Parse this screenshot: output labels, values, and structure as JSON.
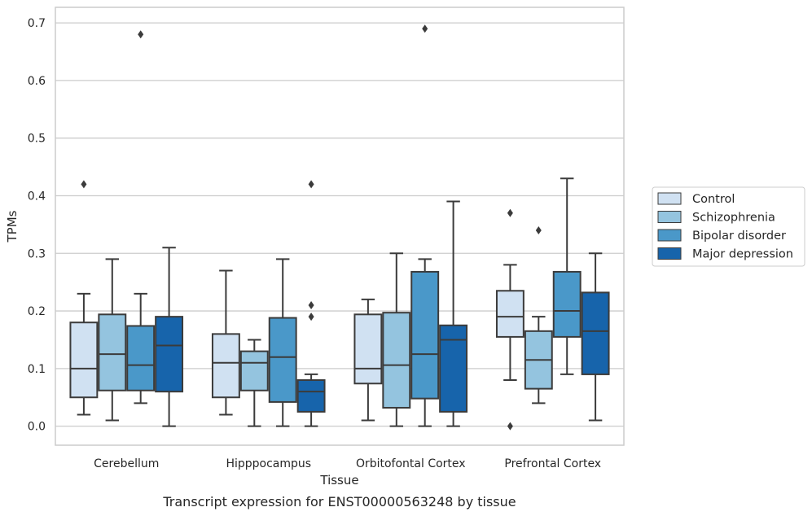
{
  "caption": "Transcript expression for ENST00000563248 by tissue",
  "chart_data": {
    "type": "boxplot",
    "xlabel": "Tissue",
    "ylabel": "TPMs",
    "ylim": [
      -0.033,
      0.727
    ],
    "yticks": [
      0.0,
      0.1,
      0.2,
      0.3,
      0.4,
      0.5,
      0.6,
      0.7
    ],
    "ytick_labels": [
      "0.0",
      "0.1",
      "0.2",
      "0.3",
      "0.4",
      "0.5",
      "0.6",
      "0.7"
    ],
    "grid": true,
    "legend_position": "right",
    "categories": [
      "Cerebellum",
      "Hipppocampus",
      "Orbitofontal Cortex",
      "Prefrontal Cortex"
    ],
    "series": [
      {
        "name": "Control",
        "color": "#d0e1f2",
        "boxes": [
          {
            "whislo": 0.02,
            "q1": 0.05,
            "med": 0.1,
            "q3": 0.18,
            "whishi": 0.23,
            "fliers": [
              0.42
            ]
          },
          {
            "whislo": 0.02,
            "q1": 0.05,
            "med": 0.11,
            "q3": 0.16,
            "whishi": 0.27,
            "fliers": []
          },
          {
            "whislo": 0.01,
            "q1": 0.074,
            "med": 0.1,
            "q3": 0.194,
            "whishi": 0.22,
            "fliers": []
          },
          {
            "whislo": 0.08,
            "q1": 0.155,
            "med": 0.19,
            "q3": 0.235,
            "whishi": 0.28,
            "fliers": [
              0.37,
              0.0
            ]
          }
        ]
      },
      {
        "name": "Schizophrenia",
        "color": "#94c4df",
        "boxes": [
          {
            "whislo": 0.01,
            "q1": 0.062,
            "med": 0.125,
            "q3": 0.194,
            "whishi": 0.29,
            "fliers": []
          },
          {
            "whislo": 0.0,
            "q1": 0.062,
            "med": 0.11,
            "q3": 0.13,
            "whishi": 0.15,
            "fliers": []
          },
          {
            "whislo": 0.0,
            "q1": 0.032,
            "med": 0.106,
            "q3": 0.197,
            "whishi": 0.3,
            "fliers": []
          },
          {
            "whislo": 0.04,
            "q1": 0.065,
            "med": 0.115,
            "q3": 0.165,
            "whishi": 0.19,
            "fliers": [
              0.34
            ]
          }
        ]
      },
      {
        "name": "Bipolar disorder",
        "color": "#4a98c9",
        "boxes": [
          {
            "whislo": 0.04,
            "q1": 0.062,
            "med": 0.106,
            "q3": 0.174,
            "whishi": 0.23,
            "fliers": [
              0.68
            ]
          },
          {
            "whislo": 0.0,
            "q1": 0.042,
            "med": 0.12,
            "q3": 0.188,
            "whishi": 0.29,
            "fliers": []
          },
          {
            "whislo": 0.0,
            "q1": 0.048,
            "med": 0.125,
            "q3": 0.268,
            "whishi": 0.29,
            "fliers": [
              0.69
            ]
          },
          {
            "whislo": 0.09,
            "q1": 0.155,
            "med": 0.2,
            "q3": 0.268,
            "whishi": 0.43,
            "fliers": []
          }
        ]
      },
      {
        "name": "Major depression",
        "color": "#1764ab",
        "boxes": [
          {
            "whislo": 0.0,
            "q1": 0.06,
            "med": 0.14,
            "q3": 0.19,
            "whishi": 0.31,
            "fliers": []
          },
          {
            "whislo": 0.0,
            "q1": 0.025,
            "med": 0.06,
            "q3": 0.08,
            "whishi": 0.09,
            "fliers": [
              0.42,
              0.21,
              0.19
            ]
          },
          {
            "whislo": 0.0,
            "q1": 0.025,
            "med": 0.15,
            "q3": 0.175,
            "whishi": 0.39,
            "fliers": []
          },
          {
            "whislo": 0.01,
            "q1": 0.09,
            "med": 0.165,
            "q3": 0.232,
            "whishi": 0.3,
            "fliers": []
          }
        ]
      }
    ]
  }
}
